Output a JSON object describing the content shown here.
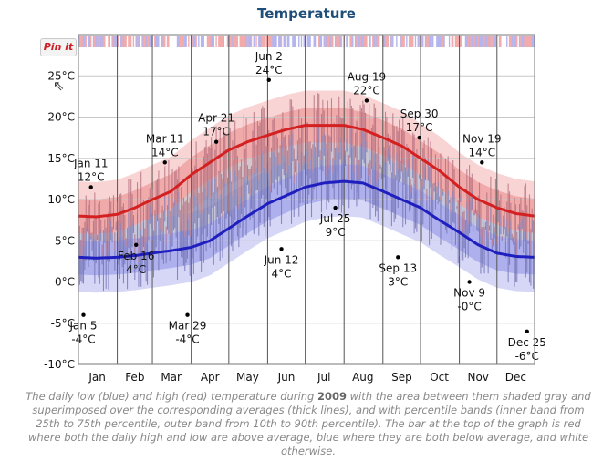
{
  "title": "Temperature",
  "pinit_label": "Pin it",
  "caption": {
    "text_before": "The daily low (blue) and high (red) temperature during ",
    "year": "2009",
    "text_after": " with the area between them shaded gray and superimposed over the corresponding averages (thick lines), and with percentile bands (inner band from 25th to 75th percentile, outer band from 10th to 90th percentile). The bar at the top of the graph is red where both the daily high and low are above average, blue where they are both below average, and white otherwise."
  },
  "colors": {
    "high": "#d42020",
    "low": "#1f1fbf",
    "shade": "#8a8a8a",
    "band_red_outer": "#f9d4d4",
    "band_red_inner": "#f1aaaa",
    "band_blue_outer": "#d6d6f6",
    "band_blue_inner": "#aeb0ee",
    "title": "#1f4e79"
  },
  "chart_data": {
    "type": "line",
    "ylim": [
      -10,
      30
    ],
    "y_ticks": [
      "-10°C",
      "-5°C",
      "0°C",
      "5°C",
      "10°C",
      "15°C",
      "20°C",
      "25°C"
    ],
    "y_tick_values": [
      -10,
      -5,
      0,
      5,
      10,
      15,
      20,
      25
    ],
    "x_tick_labels": [
      "Jan",
      "Feb",
      "Mar",
      "Apr",
      "May",
      "Jun",
      "Jul",
      "Aug",
      "Sep",
      "Oct",
      "Nov",
      "Dec"
    ],
    "average_high": [
      [
        1,
        8
      ],
      [
        15,
        7.9
      ],
      [
        32,
        8.2
      ],
      [
        46,
        9
      ],
      [
        60,
        10
      ],
      [
        75,
        11
      ],
      [
        91,
        13
      ],
      [
        106,
        14.5
      ],
      [
        121,
        16
      ],
      [
        136,
        17
      ],
      [
        152,
        17.8
      ],
      [
        167,
        18.5
      ],
      [
        182,
        19
      ],
      [
        197,
        19
      ],
      [
        213,
        19
      ],
      [
        228,
        18.5
      ],
      [
        244,
        17.5
      ],
      [
        259,
        16.5
      ],
      [
        274,
        15
      ],
      [
        289,
        13.5
      ],
      [
        305,
        11.5
      ],
      [
        320,
        10
      ],
      [
        335,
        9
      ],
      [
        350,
        8.3
      ],
      [
        365,
        8
      ]
    ],
    "average_low": [
      [
        1,
        3
      ],
      [
        15,
        2.9
      ],
      [
        32,
        3
      ],
      [
        46,
        3.2
      ],
      [
        60,
        3.5
      ],
      [
        75,
        3.8
      ],
      [
        91,
        4.2
      ],
      [
        106,
        5
      ],
      [
        121,
        6.5
      ],
      [
        136,
        8
      ],
      [
        152,
        9.5
      ],
      [
        167,
        10.5
      ],
      [
        182,
        11.5
      ],
      [
        197,
        12
      ],
      [
        213,
        12.2
      ],
      [
        228,
        12
      ],
      [
        244,
        11
      ],
      [
        259,
        10
      ],
      [
        274,
        9
      ],
      [
        289,
        7.5
      ],
      [
        305,
        6
      ],
      [
        320,
        4.5
      ],
      [
        335,
        3.5
      ],
      [
        350,
        3.1
      ],
      [
        365,
        3
      ]
    ],
    "annotations": [
      {
        "label": "Jan 11",
        "value": "12°C",
        "day": 11,
        "temp": 11.5
      },
      {
        "label": "Jan 5",
        "value": "-4°C",
        "day": 5,
        "temp": -4
      },
      {
        "label": "Feb 16",
        "value": "4°C",
        "day": 47,
        "temp": 4.5
      },
      {
        "label": "Mar 11",
        "value": "14°C",
        "day": 70,
        "temp": 14.5
      },
      {
        "label": "Mar 29",
        "value": "-4°C",
        "day": 88,
        "temp": -4
      },
      {
        "label": "Apr 21",
        "value": "17°C",
        "day": 111,
        "temp": 17
      },
      {
        "label": "Jun 2",
        "value": "24°C",
        "day": 153,
        "temp": 24.5
      },
      {
        "label": "Jun 12",
        "value": "4°C",
        "day": 163,
        "temp": 4
      },
      {
        "label": "Jul 25",
        "value": "9°C",
        "day": 206,
        "temp": 9
      },
      {
        "label": "Aug 19",
        "value": "22°C",
        "day": 231,
        "temp": 22
      },
      {
        "label": "Sep 13",
        "value": "3°C",
        "day": 256,
        "temp": 3
      },
      {
        "label": "Sep 30",
        "value": "17°C",
        "day": 273,
        "temp": 17.5
      },
      {
        "label": "Nov 9",
        "value": "-0°C",
        "day": 313,
        "temp": 0
      },
      {
        "label": "Nov 19",
        "value": "14°C",
        "day": 323,
        "temp": 14.5
      },
      {
        "label": "Dec 25",
        "value": "-6°C",
        "day": 359,
        "temp": -6
      }
    ]
  }
}
